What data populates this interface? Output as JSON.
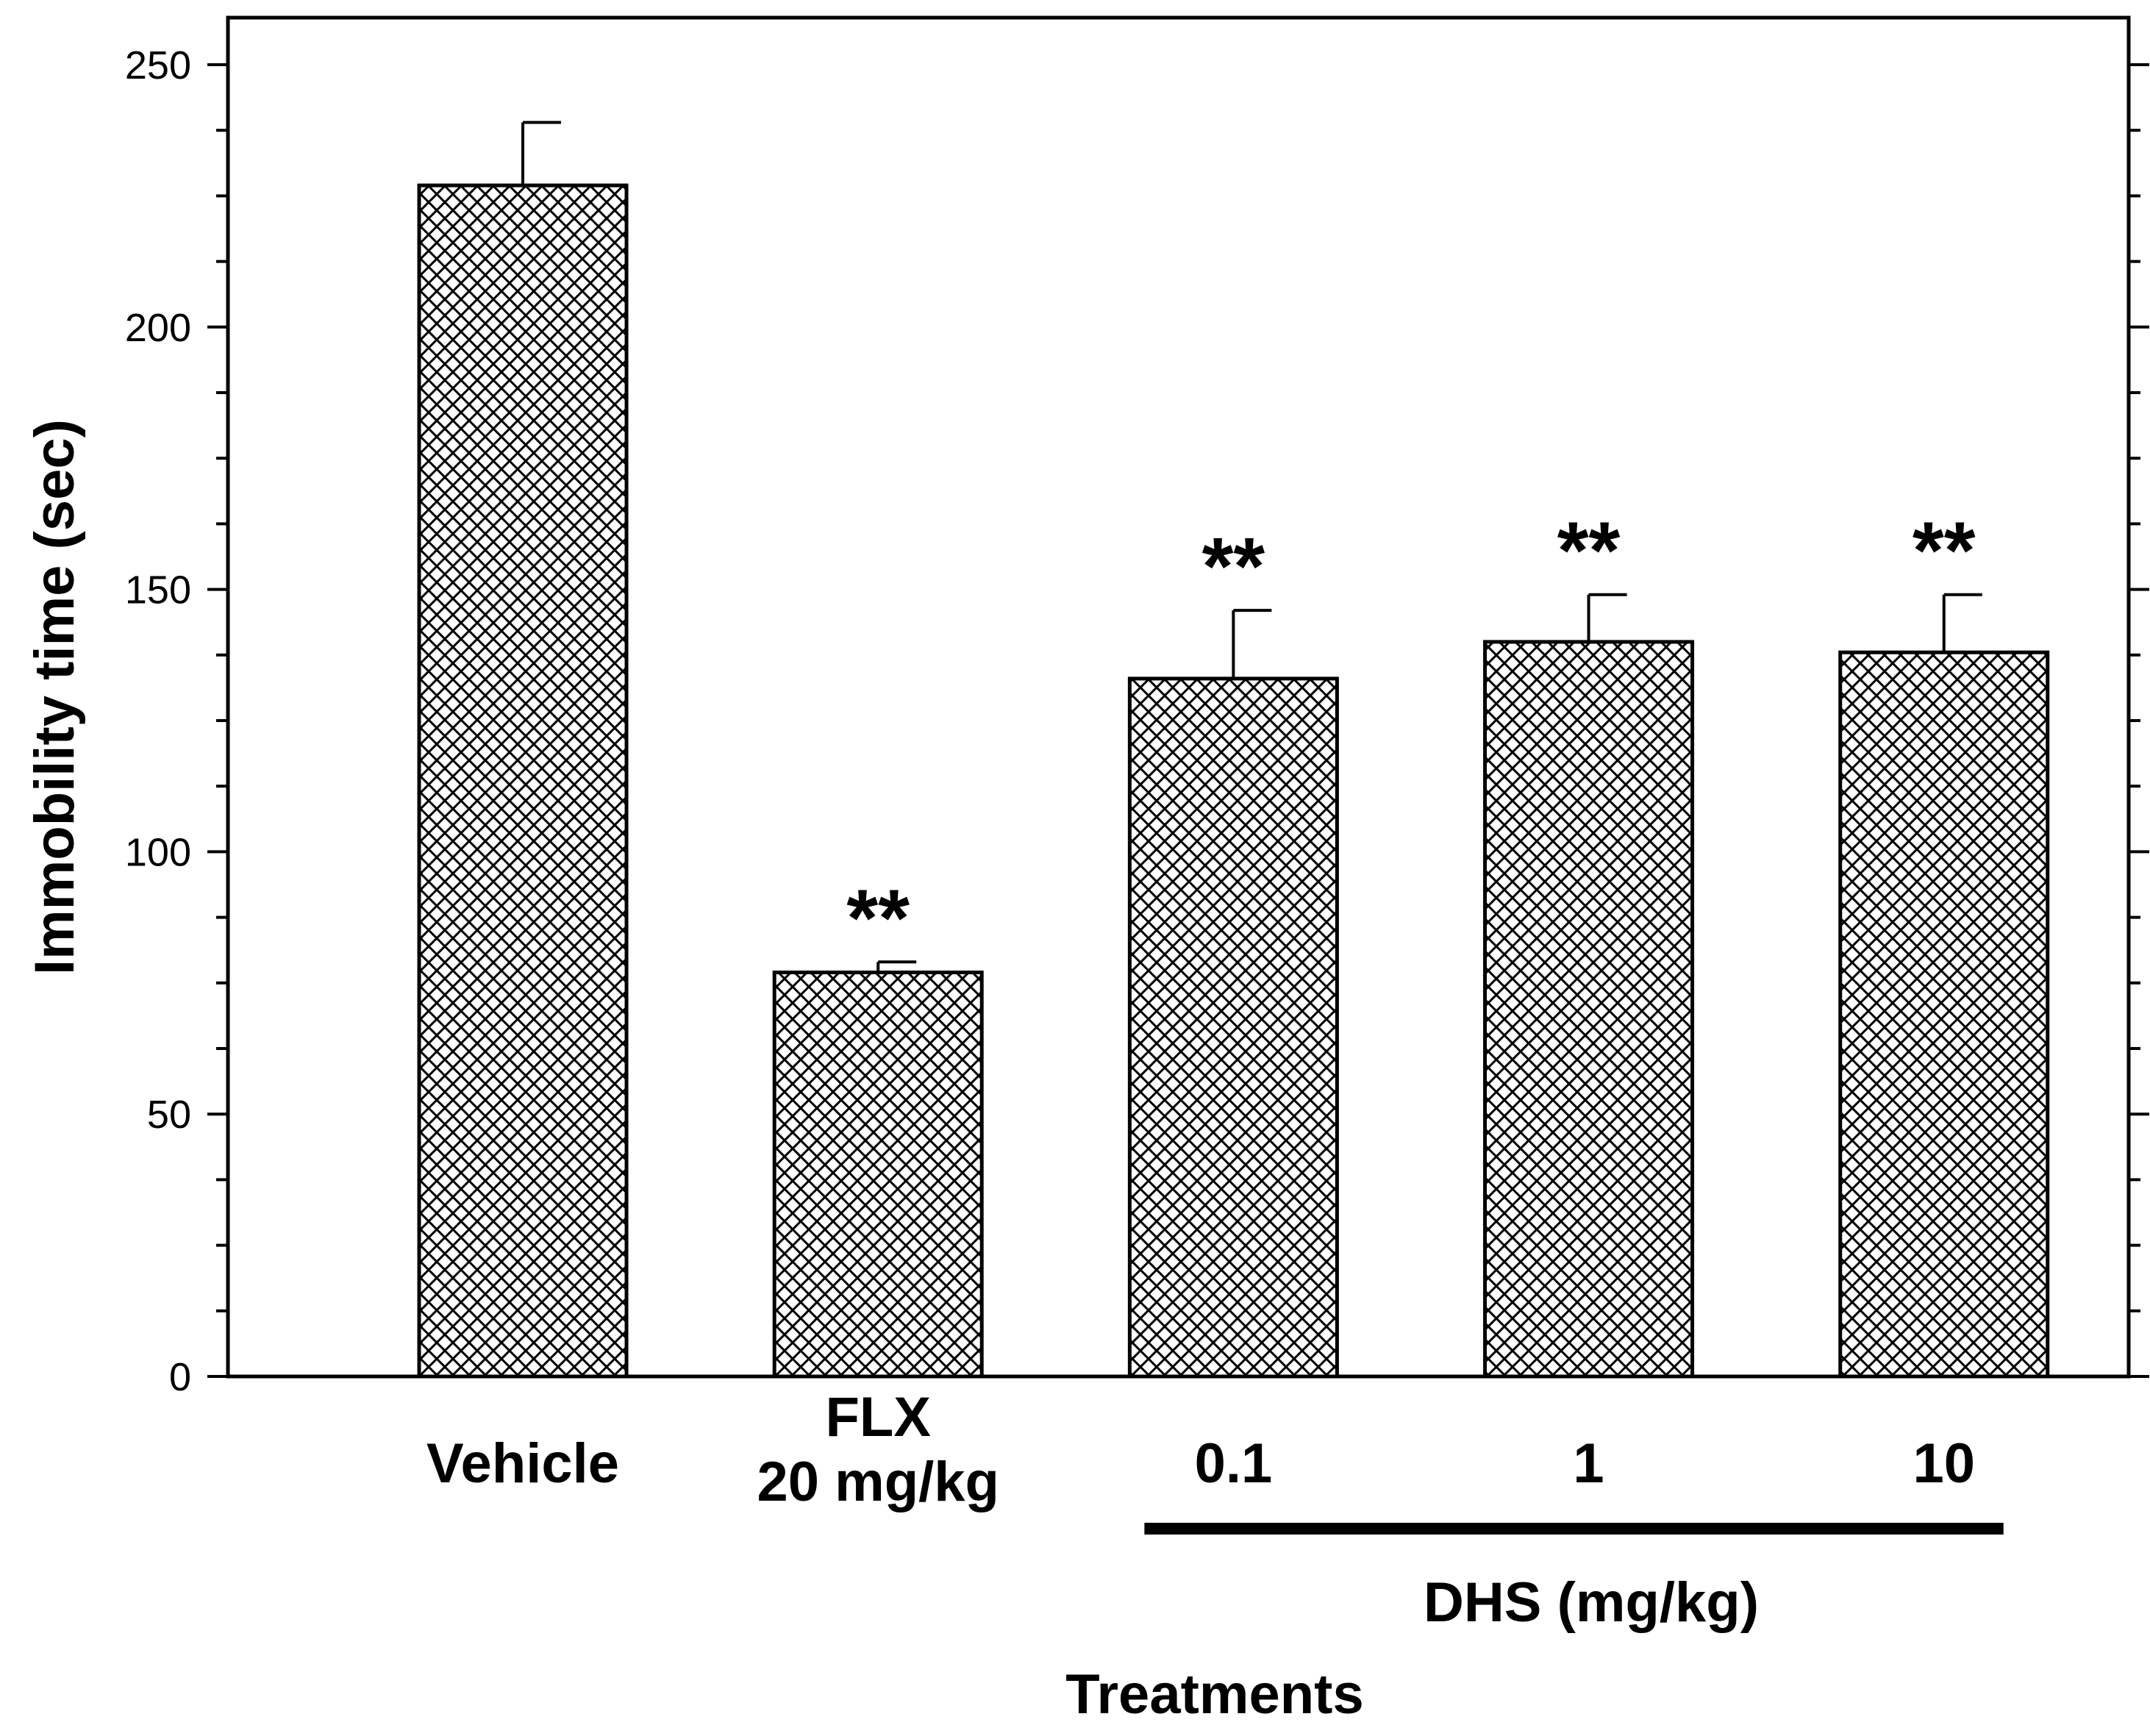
{
  "chart_data": {
    "type": "bar",
    "categories": [
      "Vehicle",
      "FLX\n20 mg/kg",
      "0.1",
      "1",
      "10"
    ],
    "values": [
      227,
      77,
      133,
      140,
      138
    ],
    "errors": [
      12,
      2,
      13,
      9,
      11
    ],
    "significance": [
      "",
      "**",
      "**",
      "**",
      "**"
    ],
    "group_label": "DHS (mg/kg)",
    "group_categories": [
      2,
      4
    ],
    "xlabel": "Treatments",
    "ylabel": "Immobility time (sec)",
    "ylim": [
      0,
      250
    ],
    "yticks": [
      0,
      50,
      100,
      150,
      200,
      250
    ],
    "y_minor_step": 12.5,
    "bar_pattern": "crosshatch",
    "colors": {
      "bar_stroke": "#000000",
      "bar_fill": "#ffffff",
      "hatch": "#000000"
    }
  }
}
